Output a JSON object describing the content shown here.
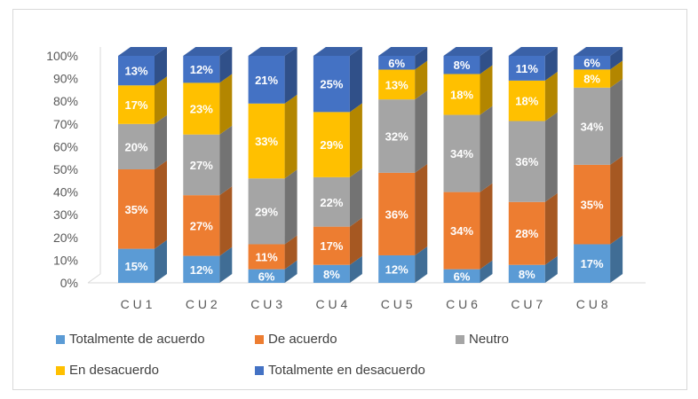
{
  "chart_data": {
    "type": "bar",
    "stacked": true,
    "three_d": true,
    "normalized_percent": true,
    "categories": [
      "CU1",
      "CU2",
      "CU3",
      "CU4",
      "CU5",
      "CU6",
      "CU7",
      "CU8"
    ],
    "category_labels": [
      "C U 1",
      "C U 2",
      "C U 3",
      "C U 4",
      "C U 5",
      "C U 6",
      "C U 7",
      "C U 8"
    ],
    "ylim": [
      0,
      100
    ],
    "yticks": [
      "0%",
      "10%",
      "20%",
      "30%",
      "40%",
      "50%",
      "60%",
      "70%",
      "80%",
      "90%",
      "100%"
    ],
    "title": "",
    "xlabel": "",
    "ylabel": "",
    "grid": false,
    "legend_position": "bottom",
    "series": [
      {
        "name": "Totalmente de acuerdo",
        "color": "#5b9bd5",
        "values": [
          15,
          12,
          6,
          8,
          12,
          6,
          8,
          17
        ],
        "labels": [
          "15%",
          "12%",
          "6%",
          "8%",
          "12%",
          "6%",
          "8%",
          "17%"
        ]
      },
      {
        "name": "De acuerdo",
        "color": "#ed7d31",
        "values": [
          35,
          27,
          11,
          17,
          36,
          34,
          28,
          35
        ],
        "labels": [
          "35%",
          "27%",
          "11%",
          "17%",
          "36%",
          "34%",
          "28%",
          "35%"
        ]
      },
      {
        "name": "Neutro",
        "color": "#a5a5a5",
        "values": [
          20,
          27,
          29,
          22,
          32,
          34,
          36,
          34
        ],
        "labels": [
          "20%",
          "27%",
          "29%",
          "22%",
          "32%",
          "34%",
          "36%",
          "34%"
        ]
      },
      {
        "name": "En desacuerdo",
        "color": "#ffc000",
        "values": [
          17,
          23,
          33,
          29,
          13,
          18,
          18,
          8
        ],
        "labels": [
          "17%",
          "23%",
          "33%",
          "29%",
          "13%",
          "18%",
          "18%",
          "8%"
        ]
      },
      {
        "name": "Totalmente en desacuerdo",
        "color": "#4472c4",
        "values": [
          13,
          12,
          21,
          25,
          6,
          8,
          11,
          6
        ],
        "labels": [
          "13%",
          "12%",
          "21%",
          "25%",
          "6%",
          "8%",
          "11%",
          "6%"
        ]
      }
    ]
  }
}
